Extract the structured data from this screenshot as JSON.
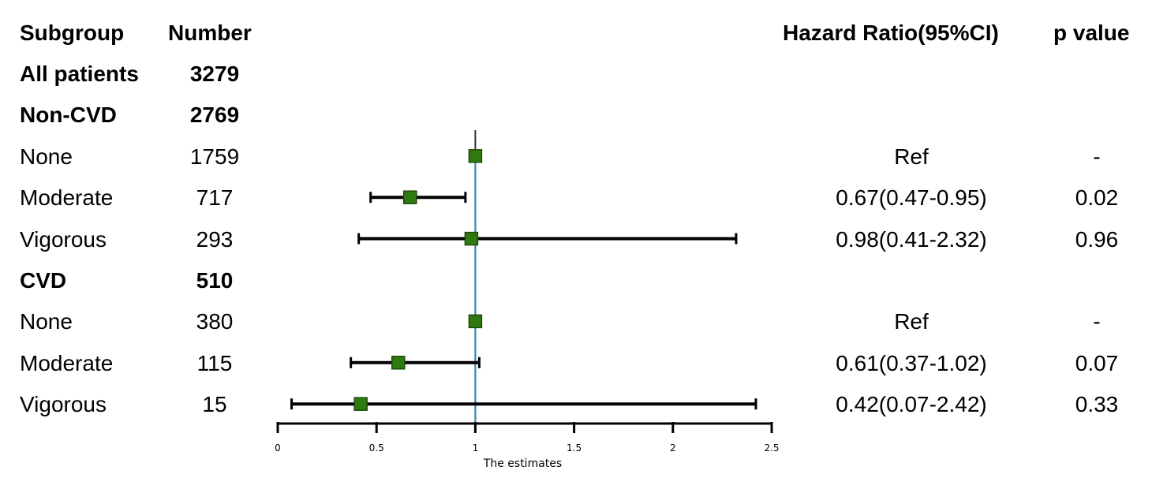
{
  "chart_data": {
    "type": "forest",
    "headers": {
      "subgroup": "Subgroup",
      "number": "Number",
      "hr": "Hazard Ratio(95%CI)",
      "p": "p value"
    },
    "xlabel": "The estimates",
    "xlim": [
      0,
      2.5
    ],
    "xticks": [
      "0",
      "0.5",
      "1",
      "1.5",
      "2",
      "2.5"
    ],
    "reference_line": 1,
    "marker_color": "#2f7a0f",
    "ref_line_color": "#2a8fc0",
    "rows": [
      {
        "label": "All patients",
        "n": "3279",
        "bold": true,
        "hr_text": "",
        "p": "",
        "est": null,
        "lo": null,
        "hi": null
      },
      {
        "label": "Non-CVD",
        "n": "2769",
        "bold": true,
        "hr_text": "",
        "p": "",
        "est": null,
        "lo": null,
        "hi": null
      },
      {
        "label": "None",
        "n": "1759",
        "bold": false,
        "hr_text": "Ref",
        "p": "-",
        "est": 1,
        "lo": null,
        "hi": null
      },
      {
        "label": "Moderate",
        "n": "717",
        "bold": false,
        "hr_text": "0.67(0.47-0.95)",
        "p": "0.02",
        "est": 0.67,
        "lo": 0.47,
        "hi": 0.95
      },
      {
        "label": "Vigorous",
        "n": "293",
        "bold": false,
        "hr_text": "0.98(0.41-2.32)",
        "p": "0.96",
        "est": 0.98,
        "lo": 0.41,
        "hi": 2.32
      },
      {
        "label": "CVD",
        "n": "510",
        "bold": true,
        "hr_text": "",
        "p": "",
        "est": null,
        "lo": null,
        "hi": null
      },
      {
        "label": "None",
        "n": "380",
        "bold": false,
        "hr_text": "Ref",
        "p": "-",
        "est": 1,
        "lo": null,
        "hi": null
      },
      {
        "label": "Moderate",
        "n": "115",
        "bold": false,
        "hr_text": "0.61(0.37-1.02)",
        "p": "0.07",
        "est": 0.61,
        "lo": 0.37,
        "hi": 1.02
      },
      {
        "label": "Vigorous",
        "n": "15",
        "bold": false,
        "hr_text": "0.42(0.07-2.42)",
        "p": "0.33",
        "est": 0.42,
        "lo": 0.07,
        "hi": 2.42
      }
    ]
  }
}
